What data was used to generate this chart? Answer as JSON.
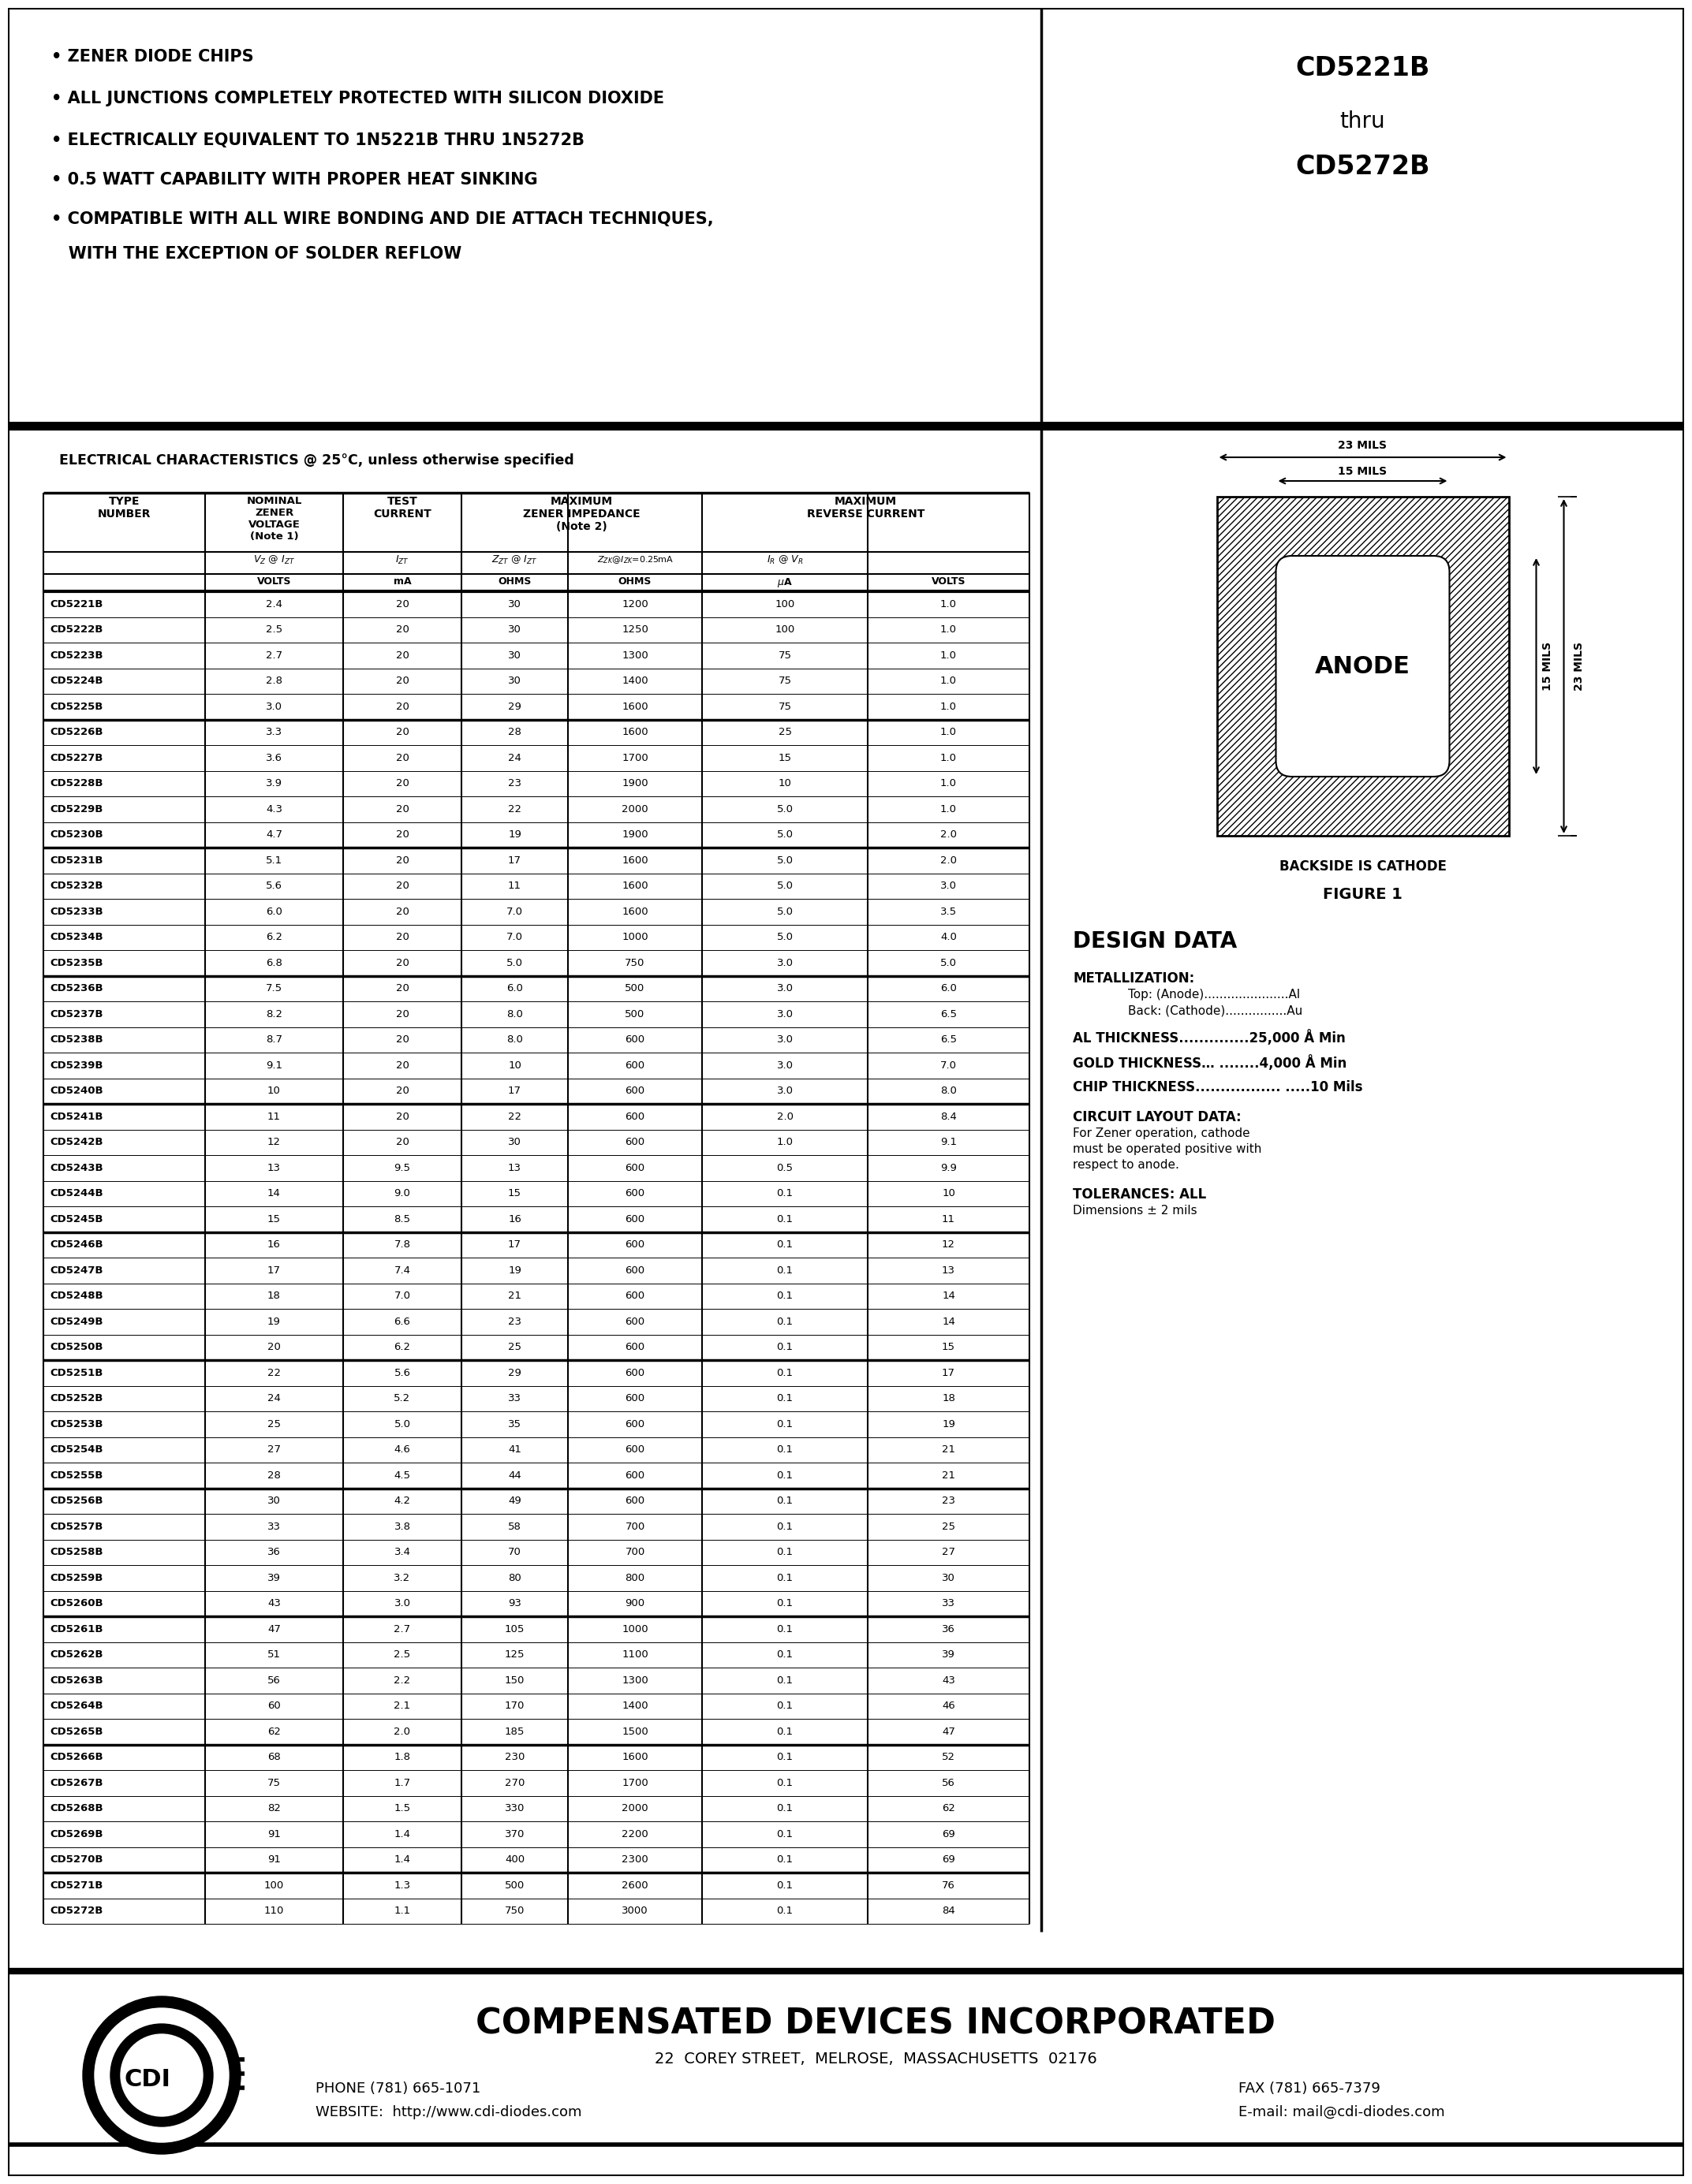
{
  "title_part1": "CD5221B",
  "title_thru": "thru",
  "title_part2": "CD5272B",
  "bullet_points": [
    "• ZENER DIODE CHIPS",
    "• ALL JUNCTIONS COMPLETELY PROTECTED WITH SILICON DIOXIDE",
    "• ELECTRICALLY EQUIVALENT TO 1N5221B THRU 1N5272B",
    "• 0.5 WATT CAPABILITY WITH PROPER HEAT SINKING",
    "• COMPATIBLE WITH ALL WIRE BONDING AND DIE ATTACH TECHNIQUES,",
    "   WITH THE EXCEPTION OF SOLDER REFLOW"
  ],
  "elec_char_header": "ELECTRICAL CHARACTERISTICS @ 25°C, unless otherwise specified",
  "table_data": [
    [
      "CD5221B",
      "2.4",
      "20",
      "30",
      "1200",
      "100",
      "1.0"
    ],
    [
      "CD5222B",
      "2.5",
      "20",
      "30",
      "1250",
      "100",
      "1.0"
    ],
    [
      "CD5223B",
      "2.7",
      "20",
      "30",
      "1300",
      "75",
      "1.0"
    ],
    [
      "CD5224B",
      "2.8",
      "20",
      "30",
      "1400",
      "75",
      "1.0"
    ],
    [
      "CD5225B",
      "3.0",
      "20",
      "29",
      "1600",
      "75",
      "1.0"
    ],
    [
      "CD5226B",
      "3.3",
      "20",
      "28",
      "1600",
      "25",
      "1.0"
    ],
    [
      "CD5227B",
      "3.6",
      "20",
      "24",
      "1700",
      "15",
      "1.0"
    ],
    [
      "CD5228B",
      "3.9",
      "20",
      "23",
      "1900",
      "10",
      "1.0"
    ],
    [
      "CD5229B",
      "4.3",
      "20",
      "22",
      "2000",
      "5.0",
      "1.0"
    ],
    [
      "CD5230B",
      "4.7",
      "20",
      "19",
      "1900",
      "5.0",
      "2.0"
    ],
    [
      "CD5231B",
      "5.1",
      "20",
      "17",
      "1600",
      "5.0",
      "2.0"
    ],
    [
      "CD5232B",
      "5.6",
      "20",
      "11",
      "1600",
      "5.0",
      "3.0"
    ],
    [
      "CD5233B",
      "6.0",
      "20",
      "7.0",
      "1600",
      "5.0",
      "3.5"
    ],
    [
      "CD5234B",
      "6.2",
      "20",
      "7.0",
      "1000",
      "5.0",
      "4.0"
    ],
    [
      "CD5235B",
      "6.8",
      "20",
      "5.0",
      "750",
      "3.0",
      "5.0"
    ],
    [
      "CD5236B",
      "7.5",
      "20",
      "6.0",
      "500",
      "3.0",
      "6.0"
    ],
    [
      "CD5237B",
      "8.2",
      "20",
      "8.0",
      "500",
      "3.0",
      "6.5"
    ],
    [
      "CD5238B",
      "8.7",
      "20",
      "8.0",
      "600",
      "3.0",
      "6.5"
    ],
    [
      "CD5239B",
      "9.1",
      "20",
      "10",
      "600",
      "3.0",
      "7.0"
    ],
    [
      "CD5240B",
      "10",
      "20",
      "17",
      "600",
      "3.0",
      "8.0"
    ],
    [
      "CD5241B",
      "11",
      "20",
      "22",
      "600",
      "2.0",
      "8.4"
    ],
    [
      "CD5242B",
      "12",
      "20",
      "30",
      "600",
      "1.0",
      "9.1"
    ],
    [
      "CD5243B",
      "13",
      "9.5",
      "13",
      "600",
      "0.5",
      "9.9"
    ],
    [
      "CD5244B",
      "14",
      "9.0",
      "15",
      "600",
      "0.1",
      "10"
    ],
    [
      "CD5245B",
      "15",
      "8.5",
      "16",
      "600",
      "0.1",
      "11"
    ],
    [
      "CD5246B",
      "16",
      "7.8",
      "17",
      "600",
      "0.1",
      "12"
    ],
    [
      "CD5247B",
      "17",
      "7.4",
      "19",
      "600",
      "0.1",
      "13"
    ],
    [
      "CD5248B",
      "18",
      "7.0",
      "21",
      "600",
      "0.1",
      "14"
    ],
    [
      "CD5249B",
      "19",
      "6.6",
      "23",
      "600",
      "0.1",
      "14"
    ],
    [
      "CD5250B",
      "20",
      "6.2",
      "25",
      "600",
      "0.1",
      "15"
    ],
    [
      "CD5251B",
      "22",
      "5.6",
      "29",
      "600",
      "0.1",
      "17"
    ],
    [
      "CD5252B",
      "24",
      "5.2",
      "33",
      "600",
      "0.1",
      "18"
    ],
    [
      "CD5253B",
      "25",
      "5.0",
      "35",
      "600",
      "0.1",
      "19"
    ],
    [
      "CD5254B",
      "27",
      "4.6",
      "41",
      "600",
      "0.1",
      "21"
    ],
    [
      "CD5255B",
      "28",
      "4.5",
      "44",
      "600",
      "0.1",
      "21"
    ],
    [
      "CD5256B",
      "30",
      "4.2",
      "49",
      "600",
      "0.1",
      "23"
    ],
    [
      "CD5257B",
      "33",
      "3.8",
      "58",
      "700",
      "0.1",
      "25"
    ],
    [
      "CD5258B",
      "36",
      "3.4",
      "70",
      "700",
      "0.1",
      "27"
    ],
    [
      "CD5259B",
      "39",
      "3.2",
      "80",
      "800",
      "0.1",
      "30"
    ],
    [
      "CD5260B",
      "43",
      "3.0",
      "93",
      "900",
      "0.1",
      "33"
    ],
    [
      "CD5261B",
      "47",
      "2.7",
      "105",
      "1000",
      "0.1",
      "36"
    ],
    [
      "CD5262B",
      "51",
      "2.5",
      "125",
      "1100",
      "0.1",
      "39"
    ],
    [
      "CD5263B",
      "56",
      "2.2",
      "150",
      "1300",
      "0.1",
      "43"
    ],
    [
      "CD5264B",
      "60",
      "2.1",
      "170",
      "1400",
      "0.1",
      "46"
    ],
    [
      "CD5265B",
      "62",
      "2.0",
      "185",
      "1500",
      "0.1",
      "47"
    ],
    [
      "CD5266B",
      "68",
      "1.8",
      "230",
      "1600",
      "0.1",
      "52"
    ],
    [
      "CD5267B",
      "75",
      "1.7",
      "270",
      "1700",
      "0.1",
      "56"
    ],
    [
      "CD5268B",
      "82",
      "1.5",
      "330",
      "2000",
      "0.1",
      "62"
    ],
    [
      "CD5269B",
      "91",
      "1.4",
      "370",
      "2200",
      "0.1",
      "69"
    ],
    [
      "CD5270B",
      "91",
      "1.4",
      "400",
      "2300",
      "0.1",
      "69"
    ],
    [
      "CD5271B",
      "100",
      "1.3",
      "500",
      "2600",
      "0.1",
      "76"
    ],
    [
      "CD5272B",
      "110",
      "1.1",
      "750",
      "3000",
      "0.1",
      "84"
    ]
  ],
  "group_breaks": [
    5,
    10,
    15,
    20,
    25,
    30,
    35,
    40,
    45,
    50
  ],
  "design_data_title": "DESIGN DATA",
  "metallization_title": "METALLIZATION:",
  "metallization_top": "Top: (Anode)......................Al",
  "metallization_back": "Back: (Cathode)................Au",
  "al_thickness": "AL THICKNESS..............25,000 Å Min",
  "gold_thickness": "GOLD THICKNESS… ........4,000 Å Min",
  "chip_thickness": "CHIP THICKNESS................. .....10 Mils",
  "circuit_layout_title": "CIRCUIT LAYOUT DATA:",
  "circuit_layout_text": "For Zener operation, cathode\nmust be operated positive with\nrespect to anode.",
  "tolerances_title": "TOLERANCES: ALL",
  "tolerances_text": "Dimensions ± 2 mils",
  "figure_label": "FIGURE 1",
  "backside_label": "BACKSIDE IS CATHODE",
  "dim_23mils": "23 MILS",
  "dim_15mils": "15 MILS",
  "dim_23mils_vert": "23 MILS",
  "dim_15mils_vert": "15 MILS",
  "anode_label": "ANODE",
  "bg_color": "#ffffff",
  "company_name": "COMPENSATED DEVICES INCORPORATED",
  "company_address": "22  COREY STREET,  MELROSE,  MASSACHUSETTS  02176",
  "company_phone": "PHONE (781) 665-1071",
  "company_fax": "FAX (781) 665-7379",
  "company_website": "WEBSITE:  http://www.cdi-diodes.com",
  "company_email": "E-mail: mail@cdi-diodes.com"
}
